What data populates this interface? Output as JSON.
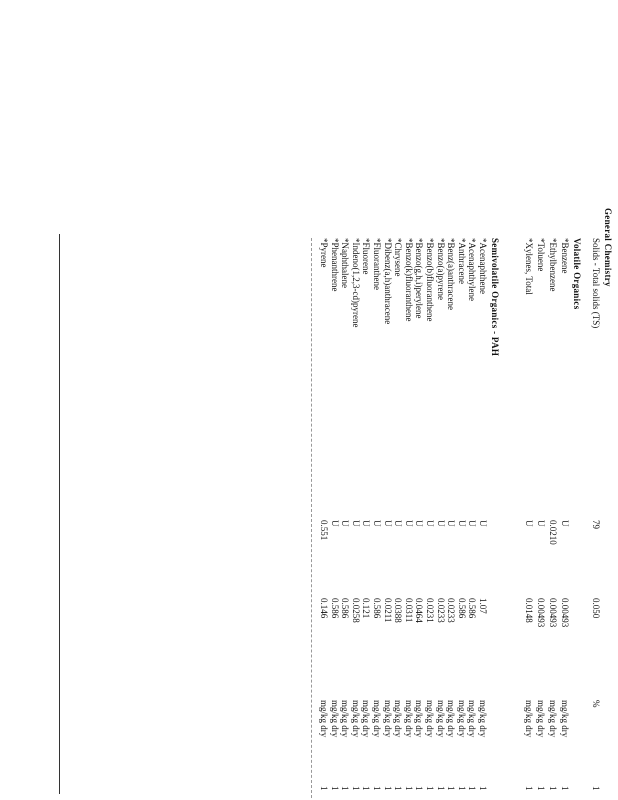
{
  "sections": [
    {
      "title": "General Chemistry",
      "rows": [
        [
          "Solids - Total solids (TS)",
          "79",
          "0.050",
          "%",
          "1"
        ]
      ]
    },
    {
      "title": "Volatile Organics",
      "rows": [
        [
          "*Benzene",
          "U",
          "0.00493",
          "mg/kg dry",
          "1"
        ],
        [
          "*Ethylbenzene",
          "0.0210",
          "0.00493",
          "mg/kg dry",
          "1"
        ],
        [
          "*Toluene",
          "U",
          "0.00493",
          "mg/kg dry",
          "1"
        ],
        [
          "*Xylenes, Total",
          "U",
          "0.0148",
          "mg/kg dry",
          "1"
        ]
      ]
    },
    {
      "title": "Semivolatile Organics - PAH",
      "rows": [
        [
          "*Acenaphthene",
          "U",
          "1.07",
          "mg/kg dry",
          "1"
        ],
        [
          "*Acenaphthylene",
          "U",
          "0.586",
          "mg/kg dry",
          "1"
        ],
        [
          "*Anthracene",
          "U",
          "0.586",
          "mg/kg dry",
          "1"
        ],
        [
          "*Benz(a)anthracene",
          "U",
          "0.0233",
          "mg/kg dry",
          "1"
        ],
        [
          "*Benzo(a)pyrene",
          "U",
          "0.0233",
          "mg/kg dry",
          "1"
        ],
        [
          "*Benzo(b)fluoranthene",
          "U",
          "0.0231",
          "mg/kg dry",
          "1"
        ],
        [
          "*Benzo(g,h,i)perylene",
          "U",
          "0.0464",
          "mg/kg dry",
          "1"
        ],
        [
          "*Benzo(k)fluoranthene",
          "U",
          "0.0311",
          "mg/kg dry",
          "1"
        ],
        [
          "*Chrysene",
          "U",
          "0.0388",
          "mg/kg dry",
          "1"
        ],
        [
          "*Dibenz(a,h)anthracene",
          "U",
          "0.0211",
          "mg/kg dry",
          "1"
        ],
        [
          "*Fluoranthene",
          "U",
          "0.586",
          "mg/kg dry",
          "1"
        ],
        [
          "*Fluorene",
          "U",
          "0.121",
          "mg/kg dry",
          "1"
        ],
        [
          "*Indeno(1,2,3-cd)pyrene",
          "U",
          "0.0258",
          "mg/kg dry",
          "1"
        ],
        [
          "*Naphthalene",
          "U",
          "0.586",
          "mg/kg dry",
          "1"
        ],
        [
          "*Phenanthrene",
          "U",
          "0.586",
          "mg/kg dry",
          "1"
        ],
        [
          "*Pyrene",
          "0.551",
          "0.146",
          "mg/kg dry",
          "1"
        ]
      ]
    }
  ]
}
